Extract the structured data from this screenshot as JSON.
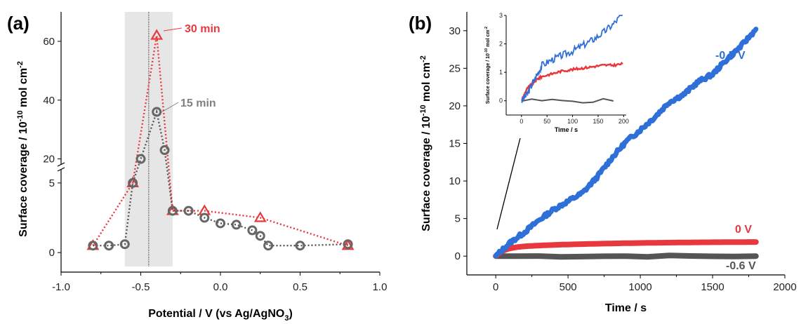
{
  "chart_data": [
    {
      "panel": "(a)",
      "type": "line",
      "xlabel": "Potential / V (vs Ag/AgNO3)",
      "xlabel_main": "Potential / V (vs Ag/AgNO",
      "xlabel_sub": "3",
      "xlabel_end": ")",
      "ylabel": "Surface coverage / 10-10 mol cm-2",
      "xlim": [
        -1.0,
        1.0
      ],
      "x_ticks": [
        "-1.0",
        "-0.5",
        "0.0",
        "0.5",
        "1.0"
      ],
      "y_ticks_lower": [
        "0",
        "5"
      ],
      "y_ticks_upper": [
        "20",
        "40",
        "60"
      ],
      "y_axis_break": [
        6,
        18
      ],
      "highlight_band": [
        -0.6,
        -0.3
      ],
      "reference_line_x": -0.45,
      "grid": false,
      "series": [
        {
          "name": "30 min",
          "color": "#e8383d",
          "marker": "triangle",
          "x": [
            -0.8,
            -0.55,
            -0.4,
            -0.3,
            -0.1,
            0.25,
            0.8
          ],
          "y": [
            0.5,
            5,
            62,
            3,
            3,
            2.5,
            0.5
          ]
        },
        {
          "name": "15 min",
          "color": "#808080",
          "marker": "circle",
          "x": [
            -0.8,
            -0.7,
            -0.6,
            -0.55,
            -0.5,
            -0.4,
            -0.35,
            -0.3,
            -0.2,
            -0.1,
            0.0,
            0.1,
            0.2,
            0.25,
            0.3,
            0.5,
            0.8
          ],
          "y": [
            0.5,
            0.5,
            0.6,
            5,
            20,
            36,
            23,
            3,
            3,
            2.5,
            2.1,
            2.0,
            1.6,
            1.2,
            0.5,
            0.5,
            0.6
          ]
        }
      ]
    },
    {
      "panel": "(b)",
      "type": "line",
      "xlabel": "Time / s",
      "ylabel": "Surface coverage / 10-10 mol cm-2",
      "xlim": [
        -200,
        2000
      ],
      "ylim": [
        -2.5,
        32.5
      ],
      "x_ticks": [
        "0",
        "500",
        "1000",
        "1500",
        "2000"
      ],
      "y_ticks": [
        "0",
        "5",
        "10",
        "15",
        "20",
        "25",
        "30"
      ],
      "grid": false,
      "series": [
        {
          "name": "-0.5 V",
          "color": "#2e6fd8",
          "x": [
            0,
            100,
            200,
            300,
            400,
            500,
            600,
            700,
            800,
            900,
            1000,
            1100,
            1200,
            1300,
            1400,
            1500,
            1600,
            1700,
            1800
          ],
          "y": [
            0,
            1.8,
            3.2,
            4.8,
            6.2,
            7.3,
            8.4,
            10.5,
            13.0,
            15.2,
            16.8,
            18.5,
            20.5,
            21.5,
            23.2,
            24.2,
            26.2,
            28.0,
            30.2
          ]
        },
        {
          "name": "0 V",
          "color": "#e8383d",
          "x": [
            0,
            50,
            100,
            200,
            400,
            800,
            1200,
            1800
          ],
          "y": [
            0,
            0.8,
            1.0,
            1.2,
            1.5,
            1.7,
            1.8,
            1.9
          ]
        },
        {
          "name": "-0.6 V",
          "color": "#555555",
          "x": [
            0,
            1800
          ],
          "y": [
            0.0,
            0.0
          ]
        }
      ],
      "inset": {
        "xlabel": "Time / s",
        "ylabel": "Surface coverage / 10-10 mol cm-2",
        "xlim": [
          -30,
          205
        ],
        "ylim": [
          -0.5,
          3.0
        ],
        "x_ticks": [
          "0",
          "50",
          "100",
          "150",
          "200"
        ],
        "y_ticks": [
          "0",
          "1",
          "2",
          "3"
        ],
        "series": [
          {
            "name": "-0.5 V",
            "color": "#2e6fd8",
            "x": [
              0,
              10,
              20,
              30,
              40,
              60,
              80,
              100,
              120,
              140,
              160,
              180,
              200
            ],
            "y": [
              0,
              0.2,
              0.55,
              0.9,
              1.25,
              1.45,
              1.6,
              1.75,
              1.95,
              2.15,
              2.4,
              2.7,
              3.1
            ]
          },
          {
            "name": "0 V",
            "color": "#e8383d",
            "x": [
              0,
              10,
              20,
              30,
              40,
              60,
              80,
              100,
              120,
              140,
              160,
              180,
              200
            ],
            "y": [
              0,
              0.4,
              0.6,
              0.75,
              0.85,
              0.95,
              1.05,
              1.1,
              1.15,
              1.2,
              1.25,
              1.25,
              1.3
            ]
          },
          {
            "name": "-0.6 V",
            "color": "#555555",
            "x": [
              0,
              200
            ],
            "y": [
              0,
              0
            ]
          }
        ]
      }
    }
  ]
}
